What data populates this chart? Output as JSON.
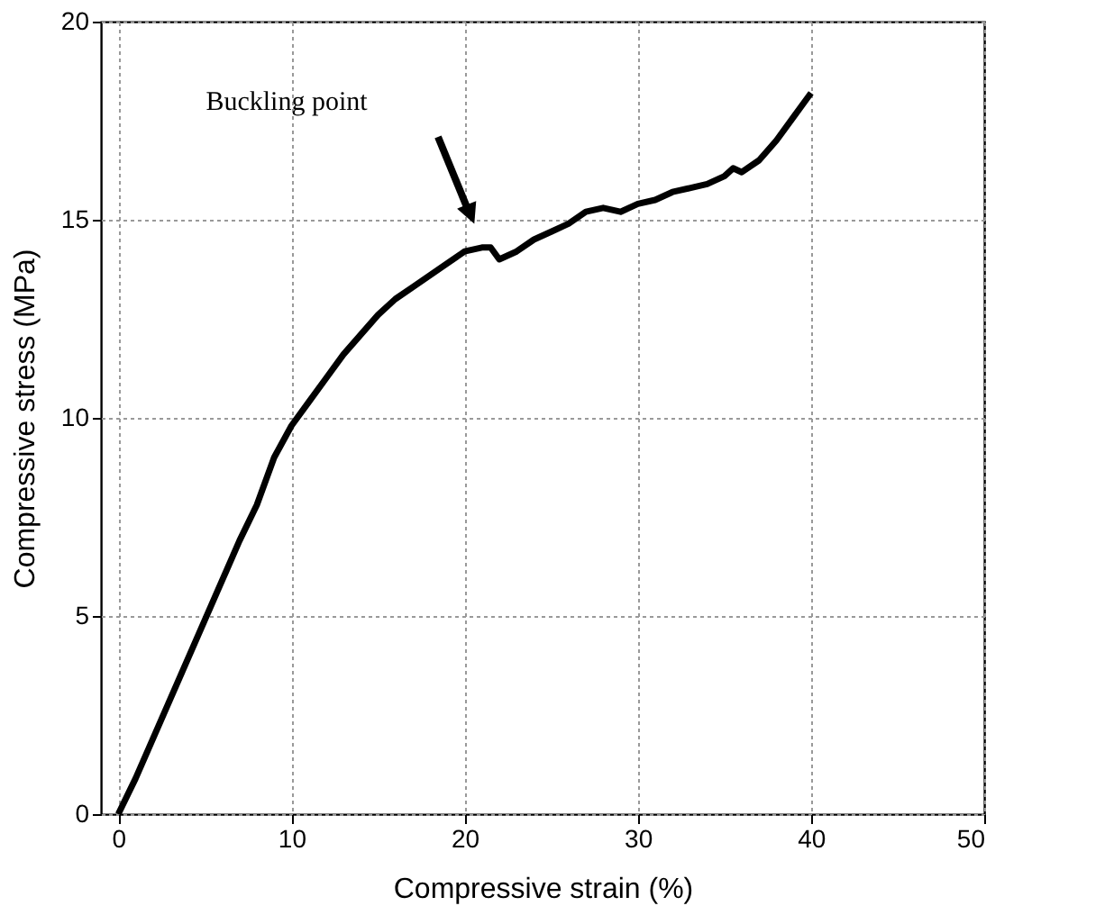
{
  "chart_data": {
    "type": "line",
    "xlabel": "Compressive strain (%)",
    "ylabel": "Compressive stress (MPa)",
    "x": [
      0,
      1,
      2,
      3,
      4,
      5,
      6,
      7,
      8,
      9,
      10,
      11,
      12,
      13,
      14,
      15,
      16,
      17,
      18,
      19,
      20,
      21,
      21.5,
      22,
      23,
      24,
      25,
      26,
      27,
      28,
      29,
      30,
      31,
      32,
      33,
      34,
      35,
      35.5,
      36,
      37,
      38,
      39,
      40
    ],
    "series": [
      {
        "color": "#000000",
        "values": [
          0,
          0.9,
          1.9,
          2.9,
          3.9,
          4.9,
          5.9,
          6.9,
          7.8,
          9.0,
          9.8,
          10.4,
          11.0,
          11.6,
          12.1,
          12.6,
          13.0,
          13.3,
          13.6,
          13.9,
          14.2,
          14.3,
          14.3,
          14.0,
          14.2,
          14.5,
          14.7,
          14.9,
          15.2,
          15.3,
          15.2,
          15.4,
          15.5,
          15.7,
          15.8,
          15.9,
          16.1,
          16.3,
          16.2,
          16.5,
          17.0,
          17.6,
          18.2
        ]
      }
    ],
    "xlim": [
      -1,
      50
    ],
    "ylim": [
      0,
      20
    ],
    "xticks": [
      0,
      10,
      20,
      30,
      40,
      50
    ],
    "yticks": [
      0,
      5,
      10,
      15,
      20
    ],
    "grid": true,
    "marker": "none",
    "line_style": "solid",
    "annotations": [
      "Buckling point"
    ]
  }
}
